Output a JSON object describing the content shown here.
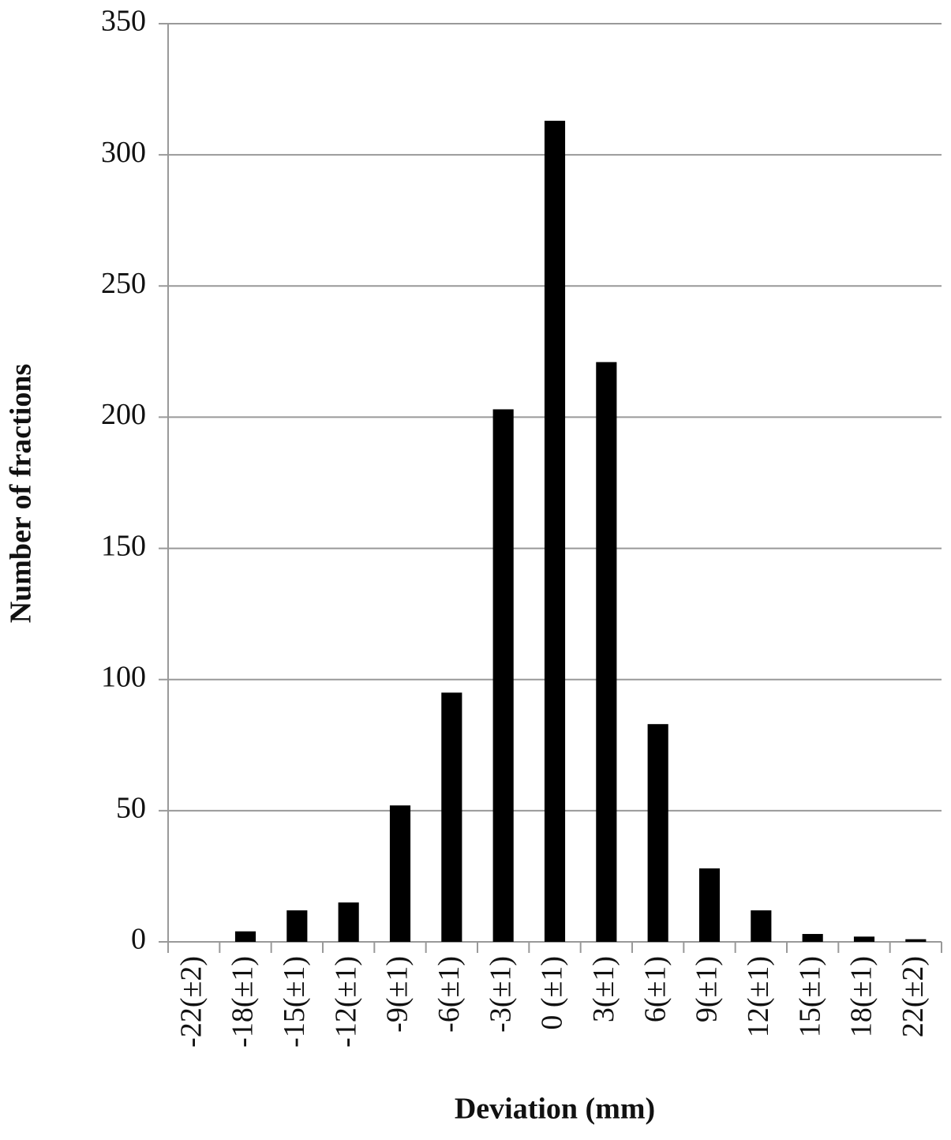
{
  "chart_data": {
    "type": "bar",
    "x_label": "Deviation (mm)",
    "y_label": "Number of fractions",
    "categories": [
      "-22(±2)",
      "-18(±1)",
      "-15(±1)",
      "-12(±1)",
      "-9(±1)",
      "-6(±1)",
      "-3(±1)",
      "0 (±1)",
      "3(±1)",
      "6(±1)",
      "9(±1)",
      "12(±1)",
      "15(±1)",
      "18(±1)",
      "22(±2)"
    ],
    "values": [
      0,
      4,
      12,
      15,
      52,
      95,
      203,
      313,
      221,
      83,
      28,
      12,
      3,
      2,
      1
    ],
    "color": "#000000",
    "ylim": [
      0,
      350
    ],
    "yticks": [
      0,
      50,
      100,
      150,
      200,
      250,
      300,
      350
    ],
    "grid": true
  }
}
